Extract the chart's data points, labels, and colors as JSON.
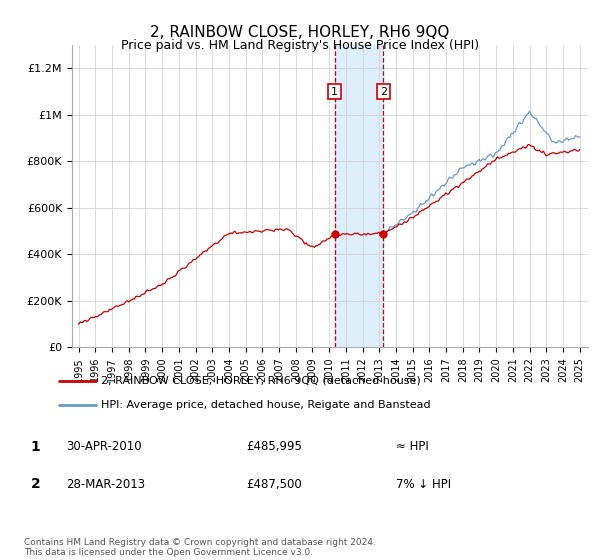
{
  "title": "2, RAINBOW CLOSE, HORLEY, RH6 9QQ",
  "subtitle": "Price paid vs. HM Land Registry's House Price Index (HPI)",
  "legend_line1": "2, RAINBOW CLOSE, HORLEY, RH6 9QQ (detached house)",
  "legend_line2": "HPI: Average price, detached house, Reigate and Banstead",
  "annotation1_label": "1",
  "annotation1_date": "30-APR-2010",
  "annotation1_price": "£485,995",
  "annotation1_rel": "≈ HPI",
  "annotation2_label": "2",
  "annotation2_date": "28-MAR-2013",
  "annotation2_price": "£487,500",
  "annotation2_rel": "7% ↓ HPI",
  "footer": "Contains HM Land Registry data © Crown copyright and database right 2024.\nThis data is licensed under the Open Government Licence v3.0.",
  "line_color_red": "#cc0000",
  "line_color_blue": "#6699cc",
  "shaded_region_color": "#ddeeff",
  "annotation_line_color": "#cc0000",
  "ylim": [
    0,
    1300000
  ],
  "yticks": [
    0,
    200000,
    400000,
    600000,
    800000,
    1000000,
    1200000
  ],
  "ytick_labels": [
    "£0",
    "£200K",
    "£400K",
    "£600K",
    "£800K",
    "£1M",
    "£1.2M"
  ],
  "sale1_year": 2010.33,
  "sale1_price": 485995,
  "sale2_year": 2013.25,
  "sale2_price": 487500,
  "xmin": 1995,
  "xmax": 2025
}
